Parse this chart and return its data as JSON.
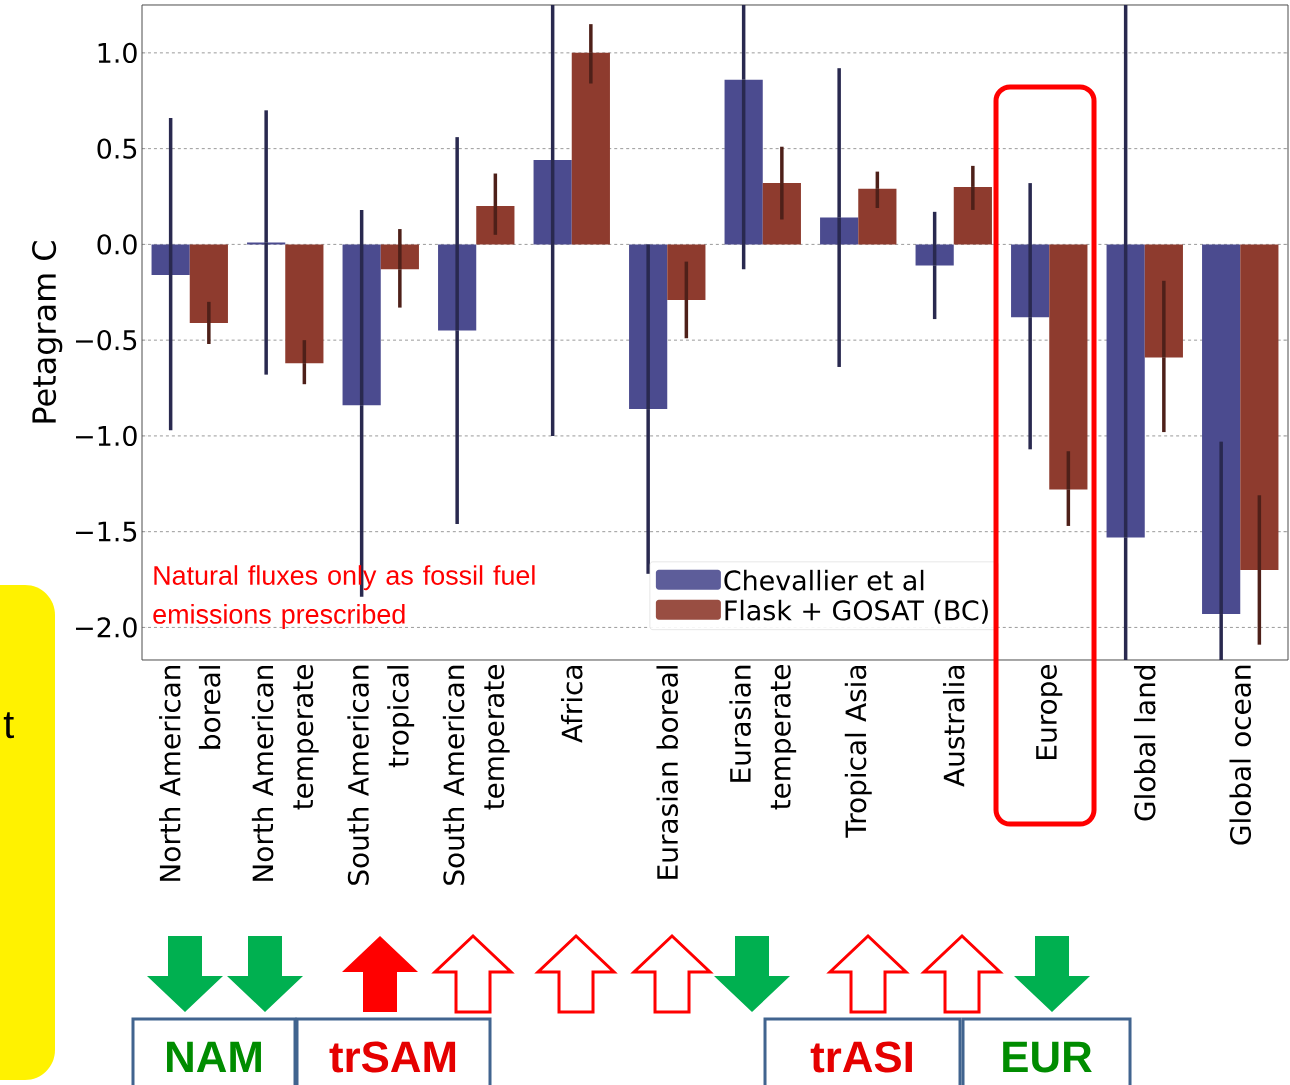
{
  "chart_data": {
    "type": "bar",
    "ylabel": "Petagram C",
    "categories": [
      "North American boreal",
      "North American temperate",
      "South American tropical",
      "South American temperate",
      "Africa",
      "Eurasian boreal",
      "Eurasian temperate",
      "Tropical Asia",
      "Australia",
      "Europe",
      "Global land",
      "Global ocean"
    ],
    "series": [
      {
        "name": "Chevallier et al",
        "color": "#4b4b8f",
        "values": [
          -0.16,
          0.01,
          -0.84,
          -0.45,
          0.44,
          -0.86,
          0.86,
          0.14,
          -0.11,
          -0.38,
          -1.53,
          -1.93
        ],
        "errors": [
          [
            -0.97,
            0.66
          ],
          [
            -0.68,
            0.7
          ],
          [
            -1.84,
            0.18
          ],
          [
            -1.46,
            0.56
          ],
          [
            -1.0,
            1.25
          ],
          [
            -1.72,
            0.0
          ],
          [
            -0.13,
            1.25
          ],
          [
            -0.64,
            0.92
          ],
          [
            -0.39,
            0.17
          ],
          [
            -1.07,
            0.32
          ],
          [
            -2.17,
            1.25
          ],
          [
            -2.17,
            -1.03
          ]
        ]
      },
      {
        "name": "Flask + GOSAT (BC)",
        "color": "#8e3b2e",
        "values": [
          -0.41,
          -0.62,
          -0.13,
          0.2,
          1.0,
          -0.29,
          0.32,
          0.29,
          0.3,
          -1.28,
          -0.59,
          -1.7
        ],
        "errors": [
          [
            -0.52,
            -0.3
          ],
          [
            -0.73,
            -0.5
          ],
          [
            -0.33,
            0.08
          ],
          [
            0.05,
            0.37
          ],
          [
            0.84,
            1.15
          ],
          [
            -0.49,
            -0.09
          ],
          [
            0.13,
            0.51
          ],
          [
            0.19,
            0.38
          ],
          [
            0.18,
            0.41
          ],
          [
            -1.47,
            -1.08
          ],
          [
            -0.98,
            -0.19
          ],
          [
            -2.09,
            -1.31
          ]
        ]
      }
    ],
    "ylim": [
      -2.17,
      1.25
    ],
    "yticks": [
      {
        "value": -2.0,
        "label": "−2.0"
      },
      {
        "value": -1.5,
        "label": "−1.5"
      },
      {
        "value": -1.0,
        "label": "−1.0"
      },
      {
        "value": -0.5,
        "label": "−0.5"
      },
      {
        "value": 0.0,
        "label": "0.0"
      },
      {
        "value": 0.5,
        "label": "0.5"
      },
      {
        "value": 1.0,
        "label": "1.0"
      }
    ],
    "grid": "y",
    "legend": "bottom right",
    "annotations": [
      "Natural fluxes only as fossil fuel emissions prescribed",
      "NAM",
      "trSAM",
      "trASI",
      "EUR",
      "t"
    ]
  }
}
